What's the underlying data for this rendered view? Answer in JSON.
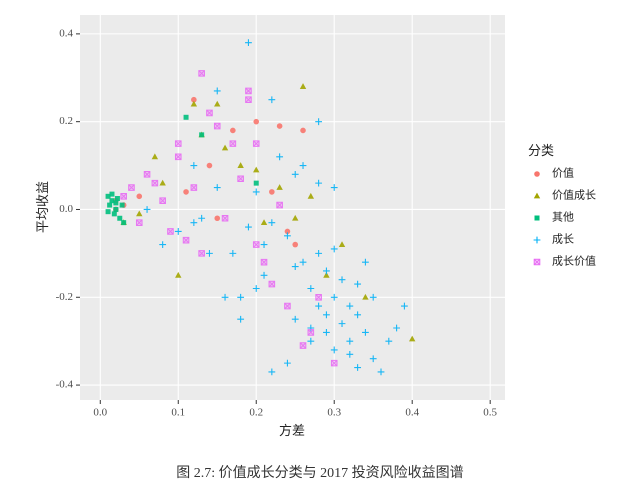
{
  "chart_data": {
    "type": "scatter",
    "caption": "图 2.7: 价值成长分类与 2017 投资风险收益图谱",
    "x_label": "方差",
    "y_label": "平均收益",
    "legend_title": "分类",
    "legend": "right",
    "grid": true,
    "xlim": [
      -0.026,
      0.519
    ],
    "ylim": [
      -0.434,
      0.443
    ],
    "xticks": [
      {
        "value": 0,
        "label": "0.0"
      },
      0.1,
      0.2,
      0.3,
      0.4,
      0.5
    ],
    "yticks": [
      -0.4,
      -0.2,
      {
        "value": 0,
        "label": "0.0"
      },
      0.2,
      0.4
    ],
    "series": [
      {
        "name": "价值",
        "color": "#F8766D",
        "shape": "circle",
        "x": [
          0.02,
          0.12,
          0.14,
          0.24,
          0.22,
          0.26,
          0.05,
          0.03,
          0.23,
          0.15,
          0.17,
          0.25,
          0.02,
          0.11,
          0.2
        ],
        "values": [
          0.02,
          0.25,
          0.1,
          -0.05,
          0.04,
          0.18,
          0.03,
          0.01,
          0.19,
          -0.02,
          0.18,
          -0.08,
          0.0,
          0.04,
          0.2
        ]
      },
      {
        "name": "价值成长",
        "color": "#A3A500",
        "shape": "triangle",
        "x": [
          0.4,
          0.26,
          0.15,
          0.12,
          0.07,
          0.03,
          0.1,
          0.27,
          0.16,
          0.2,
          0.29,
          0.25,
          0.08,
          0.13,
          0.34,
          0.31,
          0.23,
          0.05,
          0.18,
          0.21
        ],
        "values": [
          -0.295,
          0.28,
          0.24,
          0.24,
          0.12,
          -0.03,
          -0.15,
          0.03,
          0.14,
          0.09,
          -0.15,
          -0.02,
          0.06,
          0.17,
          -0.2,
          -0.08,
          0.05,
          -0.01,
          0.1,
          -0.03
        ]
      },
      {
        "name": "其他",
        "color": "#00BF7D",
        "shape": "square",
        "x": [
          0.01,
          0.012,
          0.015,
          0.018,
          0.02,
          0.022,
          0.025,
          0.028,
          0.03,
          0.01,
          0.015,
          0.02,
          0.11,
          0.13,
          0.2
        ],
        "values": [
          0.03,
          0.01,
          0.02,
          -0.01,
          0.0,
          0.025,
          -0.02,
          0.01,
          -0.03,
          -0.005,
          0.035,
          0.015,
          0.21,
          0.17,
          0.06
        ]
      },
      {
        "name": "成长",
        "color": "#00B0F6",
        "shape": "plus",
        "x": [
          0.19,
          0.22,
          0.15,
          0.28,
          0.06,
          0.08,
          0.1,
          0.12,
          0.13,
          0.15,
          0.17,
          0.18,
          0.2,
          0.21,
          0.22,
          0.23,
          0.24,
          0.25,
          0.25,
          0.26,
          0.27,
          0.27,
          0.28,
          0.28,
          0.29,
          0.29,
          0.3,
          0.3,
          0.31,
          0.31,
          0.32,
          0.32,
          0.33,
          0.33,
          0.34,
          0.34,
          0.35,
          0.35,
          0.36,
          0.37,
          0.38,
          0.39,
          0.26,
          0.28,
          0.3,
          0.24,
          0.22,
          0.2,
          0.18,
          0.16,
          0.14,
          0.12,
          0.3,
          0.32,
          0.27,
          0.29,
          0.33,
          0.21,
          0.19,
          0.25
        ],
        "values": [
          0.38,
          0.25,
          0.27,
          0.2,
          0.0,
          -0.08,
          -0.05,
          0.1,
          -0.02,
          0.05,
          -0.1,
          -0.2,
          0.04,
          -0.15,
          -0.03,
          0.12,
          -0.06,
          -0.25,
          0.08,
          -0.12,
          -0.3,
          -0.18,
          -0.1,
          -0.22,
          -0.28,
          -0.14,
          -0.2,
          -0.32,
          -0.26,
          -0.16,
          -0.3,
          -0.22,
          -0.24,
          -0.36,
          -0.28,
          -0.12,
          -0.34,
          -0.2,
          -0.37,
          -0.3,
          -0.27,
          -0.22,
          0.1,
          0.06,
          0.05,
          -0.35,
          -0.37,
          -0.18,
          -0.25,
          -0.2,
          -0.1,
          -0.03,
          -0.09,
          -0.33,
          -0.27,
          -0.24,
          -0.17,
          -0.08,
          -0.04,
          -0.13
        ]
      },
      {
        "name": "成长价值",
        "color": "#E76BF3",
        "shape": "boxcross",
        "x": [
          0.13,
          0.19,
          0.14,
          0.17,
          0.18,
          0.06,
          0.08,
          0.09,
          0.1,
          0.11,
          0.12,
          0.15,
          0.16,
          0.2,
          0.04,
          0.05,
          0.07,
          0.13,
          0.2,
          0.22,
          0.24,
          0.26,
          0.28,
          0.3,
          0.19,
          0.23,
          0.27,
          0.21,
          0.03,
          0.1
        ],
        "values": [
          0.31,
          0.25,
          0.22,
          0.15,
          0.07,
          0.08,
          0.02,
          -0.05,
          0.12,
          -0.07,
          0.05,
          0.19,
          -0.02,
          0.15,
          0.05,
          -0.03,
          0.06,
          -0.1,
          -0.08,
          -0.17,
          -0.22,
          -0.31,
          -0.2,
          -0.35,
          0.27,
          0.01,
          -0.28,
          -0.12,
          0.03,
          0.15
        ]
      }
    ]
  }
}
